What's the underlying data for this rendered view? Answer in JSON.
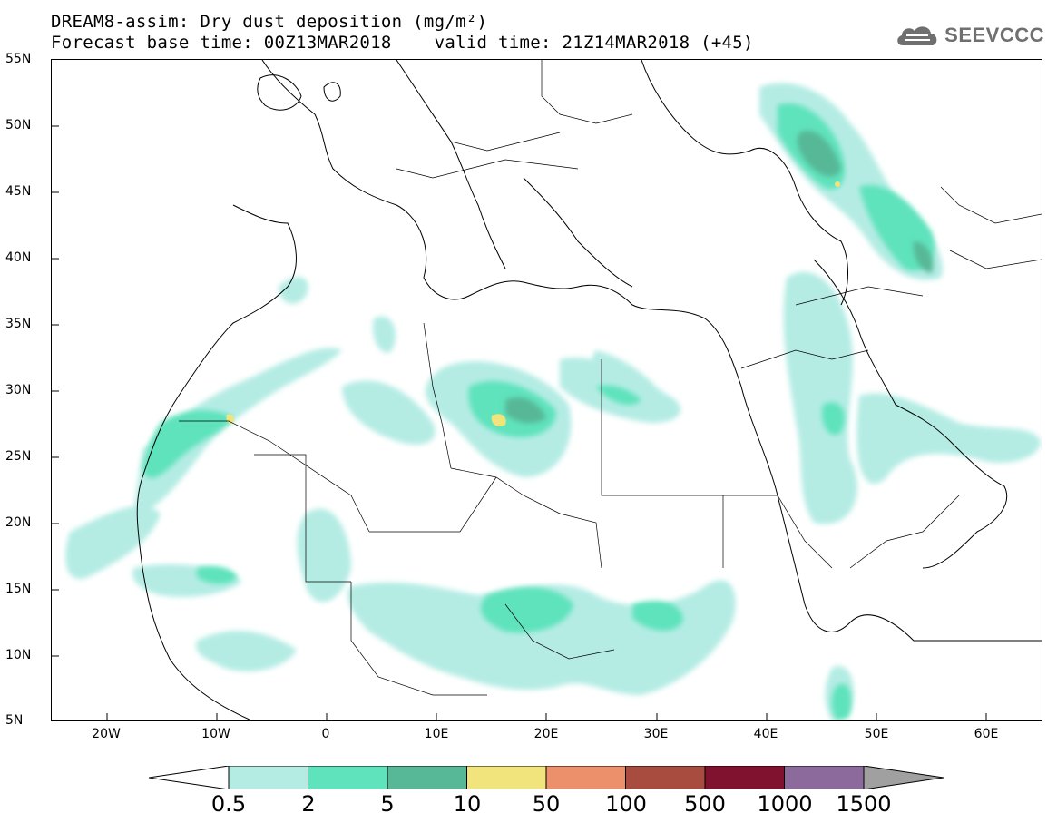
{
  "header": {
    "line1": "DREAM8-assim: Dry dust deposition (mg/m²)",
    "line2": "Forecast base time: 00Z13MAR2018    valid time: 21Z14MAR2018 (+45)"
  },
  "logo": {
    "text": "SEEVCCC",
    "icon": "cloud-icon"
  },
  "map": {
    "lon_range": [
      -25,
      65
    ],
    "lat_range": [
      5,
      55
    ],
    "lat_labels": [
      "55N",
      "50N",
      "45N",
      "40N",
      "35N",
      "30N",
      "25N",
      "20N",
      "15N",
      "10N",
      "5N"
    ],
    "lon_labels": [
      "20W",
      "10W",
      "0",
      "10E",
      "20E",
      "30E",
      "40E",
      "50E",
      "60E"
    ]
  },
  "legend": {
    "labels": [
      "0.5",
      "2",
      "5",
      "10",
      "50",
      "100",
      "500",
      "1000",
      "1500"
    ],
    "colors": [
      "#b4ece4",
      "#5ee3bc",
      "#56b896",
      "#f1e47c",
      "#ec906c",
      "#a84c40",
      "#801230",
      "#8c6a9c"
    ],
    "under_color": "#ffffff",
    "over_color": "#a0a0a0"
  }
}
